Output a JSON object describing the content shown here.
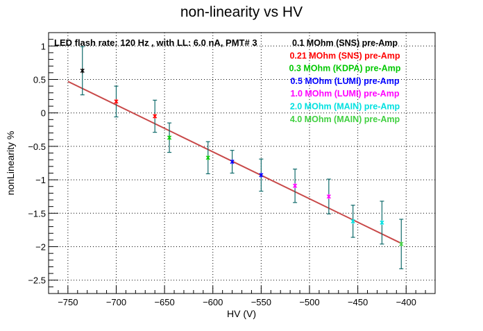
{
  "chart_data": {
    "type": "scatter",
    "title": "non-linearity vs HV",
    "xlabel": "HV (V)",
    "ylabel": "nonLinearity %",
    "xlim": [
      -770,
      -370
    ],
    "ylim": [
      -2.7,
      1.2
    ],
    "xticks": [
      -750,
      -700,
      -650,
      -600,
      -550,
      -500,
      -450,
      -400
    ],
    "yticks": [
      -2.5,
      -2,
      -1.5,
      -1,
      -0.5,
      0,
      0.5,
      1
    ],
    "grid": true,
    "annotation": "LED flash rate: 120 Hz , with LL: 6.0 nA, PMT# 3",
    "fit_line": {
      "x": [
        -750,
        -405
      ],
      "y": [
        0.47,
        -1.95
      ],
      "color": "#c84848"
    },
    "series": [
      {
        "name": "0.1 MOhm (SNS) pre-Amp",
        "color": "#000000",
        "points": [
          {
            "x": -735,
            "y": 0.63,
            "err": 0.36
          }
        ]
      },
      {
        "name": "0.21 MOhm (SNS) pre-Amp",
        "color": "#ff0000",
        "points": [
          {
            "x": -700,
            "y": 0.17,
            "err": 0.23
          },
          {
            "x": -660,
            "y": -0.05,
            "err": 0.24
          }
        ]
      },
      {
        "name": "0.3 MOhm (KDPA) pre-Amp",
        "color": "#00c800",
        "points": [
          {
            "x": -645,
            "y": -0.37,
            "err": 0.22
          },
          {
            "x": -605,
            "y": -0.67,
            "err": 0.24
          }
        ]
      },
      {
        "name": "0.5 MOhm (LUMI) pre-Amp",
        "color": "#0000ff",
        "points": [
          {
            "x": -580,
            "y": -0.73,
            "err": 0.17
          },
          {
            "x": -550,
            "y": -0.93,
            "err": 0.24
          }
        ]
      },
      {
        "name": "1.0 MOhm (LUMI) pre-Amp",
        "color": "#ff00ff",
        "points": [
          {
            "x": -515,
            "y": -1.09,
            "err": 0.25
          },
          {
            "x": -480,
            "y": -1.25,
            "err": 0.26
          }
        ]
      },
      {
        "name": "2.0 MOhm (MAIN) pre-Amp",
        "color": "#00e0e0",
        "points": [
          {
            "x": -455,
            "y": -1.62,
            "err": 0.24
          },
          {
            "x": -425,
            "y": -1.64,
            "err": 0.32
          }
        ]
      },
      {
        "name": "4.0 MOhm (MAIN) pre-Amp",
        "color": "#40d040",
        "points": [
          {
            "x": -405,
            "y": -1.96,
            "err": 0.37
          }
        ]
      }
    ]
  }
}
